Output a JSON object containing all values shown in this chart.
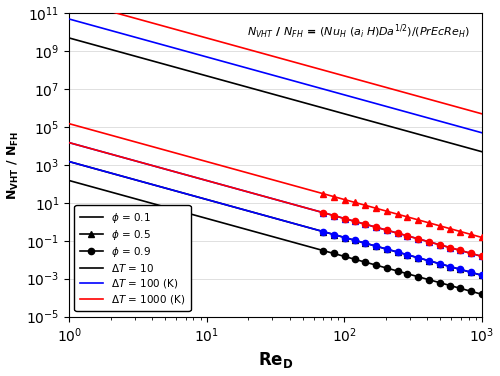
{
  "xlabel": "Re$_D$",
  "ylabel": "$N_{VHT}$ / $N_{FH}$",
  "annotation": "$N_{VHT}$ / $N_{FH}$ = $(Nu_H$ $(a_i$ $H)Da^{1/2})/(PrEcRe_H)$",
  "xmin": 1,
  "xmax": 1000,
  "ymin": 1e-05,
  "ymax": 100000000000.0,
  "slope": -2.0,
  "intercepts": {
    "phi0_dT0": 5000000000.0,
    "phi0_dT1": 50000000000.0,
    "phi0_dT2": 500000000000.0,
    "phi1_dT0": 1500.0,
    "phi1_dT1": 15000.0,
    "phi1_dT2": 150000.0,
    "phi2_dT0": 150.0,
    "phi2_dT1": 1500.0,
    "phi2_dT2": 15000.0
  },
  "dT_colors": [
    "black",
    "blue",
    "red"
  ],
  "marker_start_Re": 70,
  "n_markers": 16
}
